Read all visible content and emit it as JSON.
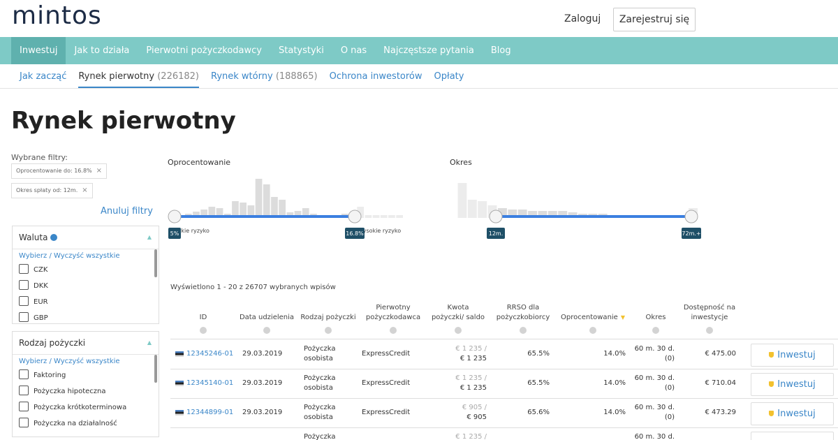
{
  "header": {
    "logo": "mintos",
    "login": "Zaloguj",
    "register": "Zarejestruj się"
  },
  "nav": [
    "Inwestuj",
    "Jak to działa",
    "Pierwotni pożyczkodawcy",
    "Statystyki",
    "O nas",
    "Najczęstsze pytania",
    "Blog"
  ],
  "subnav": [
    {
      "label": "Jak zacząć"
    },
    {
      "label": "Rynek pierwotny",
      "count": "(226182)"
    },
    {
      "label": "Rynek wtórny",
      "count": "(188865)"
    },
    {
      "label": "Ochrona inwestorów"
    },
    {
      "label": "Opłaty"
    }
  ],
  "page_title": "Rynek pierwotny",
  "filters": {
    "selected_label": "Wybrane filtry:",
    "chips": [
      "Oprocentowanie do: 16.8%",
      "Okres spłaty od: 12m."
    ],
    "clear": "Anuluj filtry",
    "groups": [
      {
        "title": "Waluta",
        "select_all": "Wybierz / Wyczyść wszystkie",
        "options": [
          "CZK",
          "DKK",
          "EUR",
          "GBP"
        ]
      },
      {
        "title": "Rodzaj pożyczki",
        "select_all": "Wybierz / Wyczyść wszystkie",
        "options": [
          "Faktoring",
          "Pożyczka hipoteczna",
          "Pożyczka krótkoterminowa",
          "Pożyczka na działalność"
        ]
      }
    ]
  },
  "sliders": [
    {
      "label": "Oprocentowanie",
      "min_label": "5%",
      "max_label": "16.8%",
      "low_text": "Niskie ryzyko",
      "high_text": "Wysokie ryzyko",
      "histogram": [
        3,
        4,
        6,
        9,
        12,
        16,
        14,
        6,
        24,
        22,
        18,
        56,
        48,
        30,
        26,
        8,
        10,
        14,
        6,
        4,
        4,
        4,
        6,
        5,
        16,
        4,
        4,
        4,
        4,
        4
      ]
    },
    {
      "label": "Okres",
      "min_label": "12m.",
      "max_label": "72m.+",
      "histogram": [
        50,
        26,
        24,
        18,
        14,
        12,
        12,
        10,
        10,
        10,
        10,
        8,
        6,
        6,
        6,
        4,
        4,
        4,
        2,
        2,
        2,
        2,
        2,
        14
      ]
    }
  ],
  "table": {
    "summary": "Wyświetlono 1 - 20 z 26707 wybranych wpisów",
    "columns": [
      "ID",
      "Data udzielenia",
      "Rodzaj pożyczki",
      "Pierwotny pożyczkodawca",
      "Kwota pożyczki/ saldo",
      "RRSO dla pożyczkobiorcy",
      "Oprocentowanie",
      "Okres",
      "Dostępność na inwestycje"
    ],
    "rows": [
      {
        "id": "12345246-01",
        "date": "29.03.2019",
        "type": "Pożyczka osobista",
        "lender": "ExpressCredit",
        "amount": "€ 1 235 /",
        "balance": "€ 1 235",
        "rrso": "65.5%",
        "rate": "14.0%",
        "term": "60 m. 30 d.",
        "term_note": "(0)",
        "available": "€ 475.00",
        "action": "Inwestuj"
      },
      {
        "id": "12345140-01",
        "date": "29.03.2019",
        "type": "Pożyczka osobista",
        "lender": "ExpressCredit",
        "amount": "€ 1 235 /",
        "balance": "€ 1 235",
        "rrso": "65.5%",
        "rate": "14.0%",
        "term": "60 m. 30 d.",
        "term_note": "(0)",
        "available": "€ 710.04",
        "action": "Inwestuj"
      },
      {
        "id": "12344899-01",
        "date": "29.03.2019",
        "type": "Pożyczka osobista",
        "lender": "ExpressCredit",
        "amount": "€ 905 /",
        "balance": "€ 905",
        "rrso": "65.6%",
        "rate": "14.0%",
        "term": "60 m. 30 d.",
        "term_note": "(0)",
        "available": "€ 473.29",
        "action": "Inwestuj"
      },
      {
        "type": "Pożyczka",
        "amount": "€ 1 235 /",
        "term": "60 m. 30 d."
      }
    ]
  }
}
